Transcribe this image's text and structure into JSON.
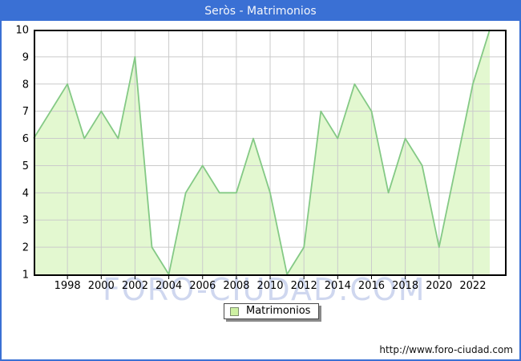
{
  "window": {
    "title": "Seròs - Matrimonios"
  },
  "colors": {
    "frame_blue": "#3a70d4",
    "title_text": "#f4f6fb",
    "plot_background": "#ffffff",
    "area_fill_green": "#e3f8d0",
    "line_green": "#84c985",
    "grid_gray": "#cbcbcb",
    "axis_border_black": "#000000",
    "label_black": "#000000",
    "watermark_blue": "#cfd7ef",
    "legend_swatch_fill": "#cdf0a2"
  },
  "watermark": {
    "text": "FORO-CIUDAD.COM"
  },
  "legend": {
    "label": "Matrimonios"
  },
  "footer": {
    "url": "http://www.foro-ciudad.com"
  },
  "chart_data": {
    "type": "area",
    "title": "Seròs - Matrimonios",
    "series_name": "Matrimonios",
    "x": [
      1996,
      1997,
      1998,
      1999,
      2000,
      2001,
      2002,
      2003,
      2004,
      2005,
      2006,
      2007,
      2008,
      2009,
      2010,
      2011,
      2012,
      2013,
      2014,
      2015,
      2016,
      2017,
      2018,
      2019,
      2020,
      2021,
      2022,
      2023
    ],
    "values": [
      6,
      7,
      8,
      6,
      7,
      6,
      9,
      2,
      1,
      4,
      5,
      4,
      4,
      6,
      4,
      1,
      2,
      7,
      6,
      8,
      7,
      4,
      6,
      5,
      2,
      5,
      8,
      10
    ],
    "ylim": [
      1,
      10
    ],
    "yticks": [
      1,
      2,
      3,
      4,
      5,
      6,
      7,
      8,
      9,
      10
    ],
    "xticks": [
      1998,
      2000,
      2002,
      2004,
      2006,
      2008,
      2010,
      2012,
      2014,
      2016,
      2018,
      2020,
      2022
    ],
    "grid": true,
    "legend_position": "bottom-center",
    "xlabel": "",
    "ylabel": ""
  }
}
